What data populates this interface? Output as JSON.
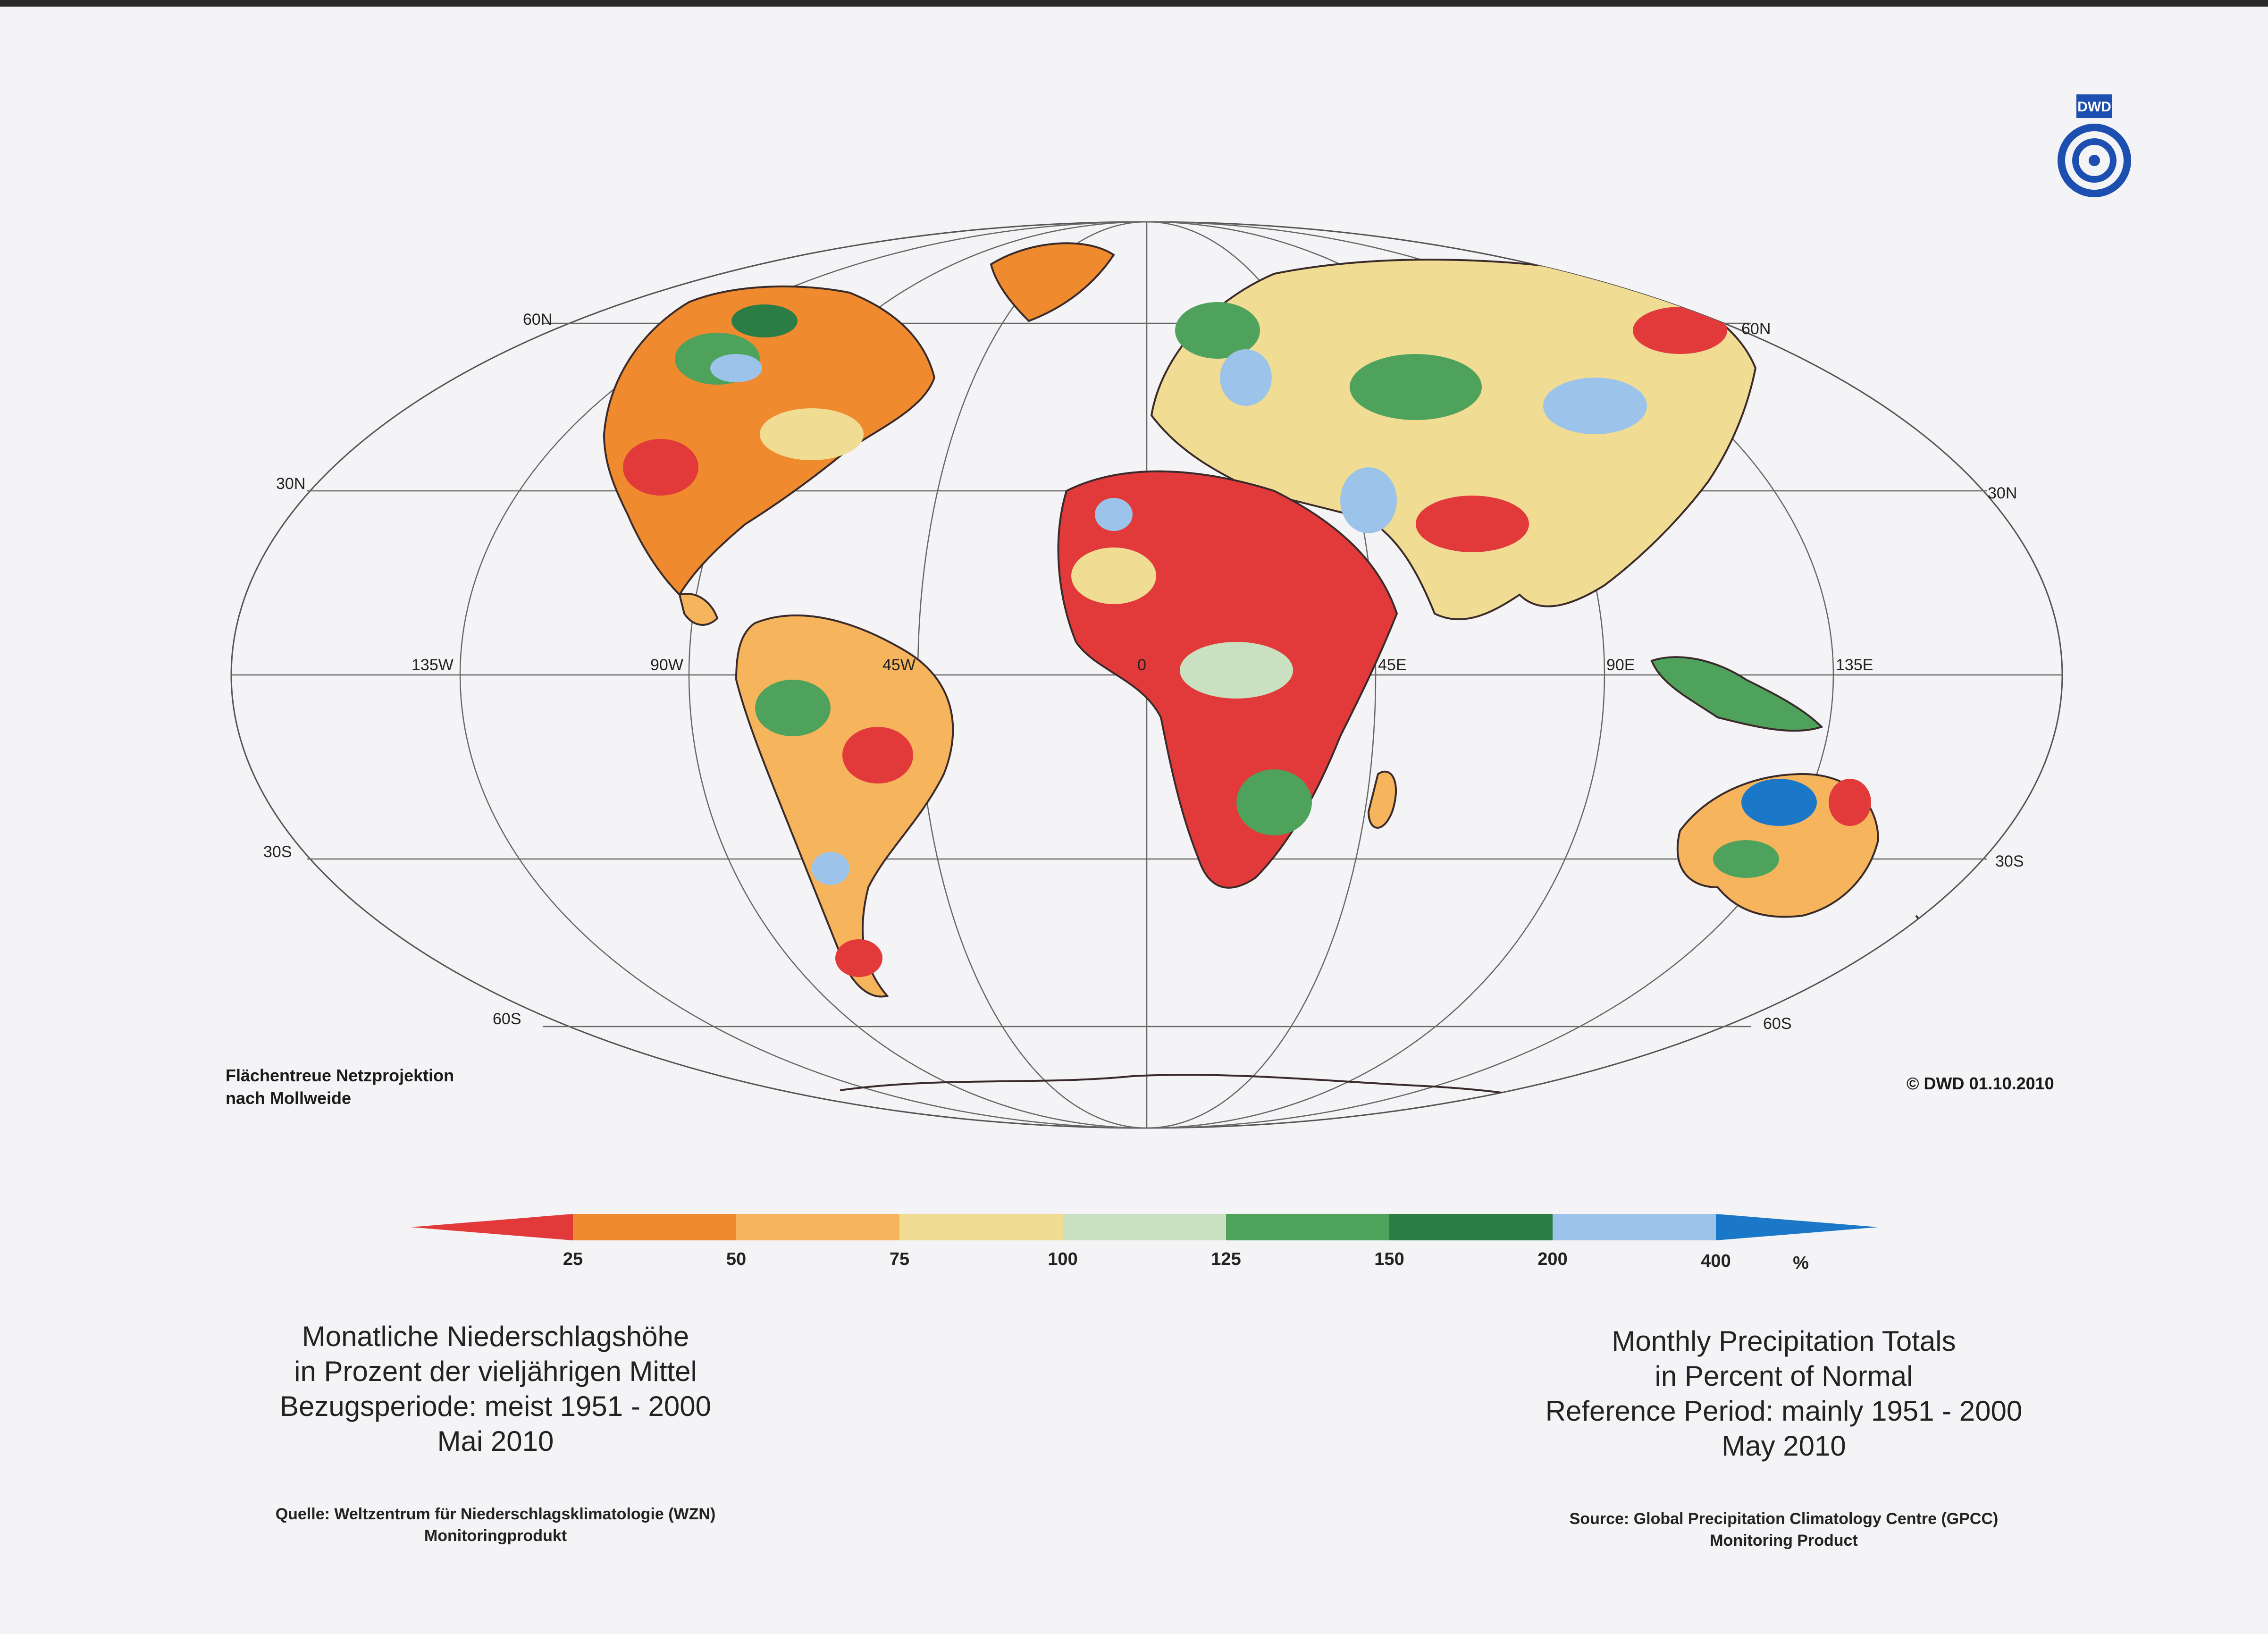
{
  "logo": {
    "text": "DWD",
    "color": "#1d4fb0"
  },
  "map": {
    "lat_labels": {
      "n60_left": "60N",
      "n60_right": "60N",
      "n30_left": "30N",
      "n30_right": "30N",
      "s30_left": "30S",
      "s30_right": "30S",
      "s60_left": "60S",
      "s60_right": "60S"
    },
    "lon_labels": [
      "135W",
      "90W",
      "45W",
      "0",
      "45E",
      "90E",
      "135E"
    ],
    "projection_note": [
      "Flächentreue Netzprojektion",
      "nach Mollweide"
    ],
    "copyright": "© DWD 01.10.2010"
  },
  "legend": {
    "ticks": [
      "25",
      "50",
      "75",
      "100",
      "125",
      "150",
      "200",
      "400"
    ],
    "unit": "%",
    "classes": [
      {
        "range": "<25",
        "color": "#e23a3a"
      },
      {
        "range": "25-50",
        "color": "#ef8a2e"
      },
      {
        "range": "50-75",
        "color": "#f6b45c"
      },
      {
        "range": "75-100",
        "color": "#f1dc93"
      },
      {
        "range": "100-125",
        "color": "#c9e1c0"
      },
      {
        "range": "125-150",
        "color": "#4fa25c"
      },
      {
        "range": "150-200",
        "color": "#2b7c45"
      },
      {
        "range": "200-400",
        "color": "#9cc4ea"
      },
      {
        "range": ">400",
        "color": "#1b78c8"
      }
    ]
  },
  "title_de": {
    "line1": "Monatliche Niederschlagshöhe",
    "line2": "in Prozent der vieljährigen Mittel",
    "line3": "Bezugsperiode: meist 1951 - 2000",
    "line4": "Mai 2010"
  },
  "title_en": {
    "line1": "Monthly Precipitation Totals",
    "line2": "in Percent of Normal",
    "line3": "Reference Period: mainly 1951 - 2000",
    "line4": "May 2010"
  },
  "source_de": {
    "line1": "Quelle: Weltzentrum für Niederschlagsklimatologie (WZN)",
    "line2": "Monitoringprodukt"
  },
  "source_en": {
    "line1": "Source: Global Precipitation Climatology Centre (GPCC)",
    "line2": "Monitoring Product"
  }
}
